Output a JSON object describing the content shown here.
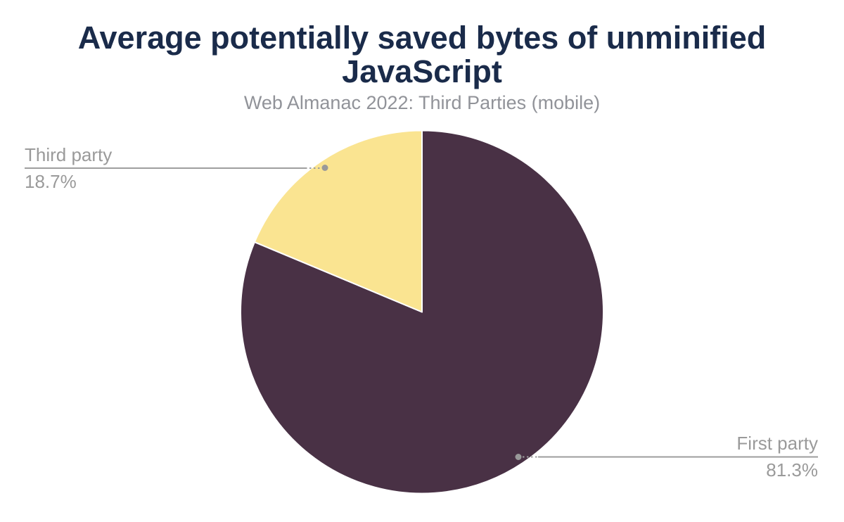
{
  "header": {
    "title": "Average potentially saved bytes of unminified JavaScript",
    "subtitle": "Web Almanac 2022: Third Parties (mobile)",
    "title_color": "#1a2b4a",
    "subtitle_color": "#919399"
  },
  "chart_data": {
    "type": "pie",
    "title": "Average potentially saved bytes of unminified JavaScript",
    "subtitle": "Web Almanac 2022: Third Parties (mobile)",
    "unit": "percent",
    "start_angle_deg": 0,
    "direction": "clockwise",
    "legend_position": "outside-callouts",
    "slices": [
      {
        "label": "First party",
        "value": 81.3,
        "percent_label": "81.3%",
        "color": "#493145"
      },
      {
        "label": "Third party",
        "value": 18.7,
        "percent_label": "18.7%",
        "color": "#fae491"
      }
    ],
    "slice_separator_color": "#ffffff",
    "callout_text_color": "#9a9a9a",
    "connector_color": "#9e9e9e"
  }
}
